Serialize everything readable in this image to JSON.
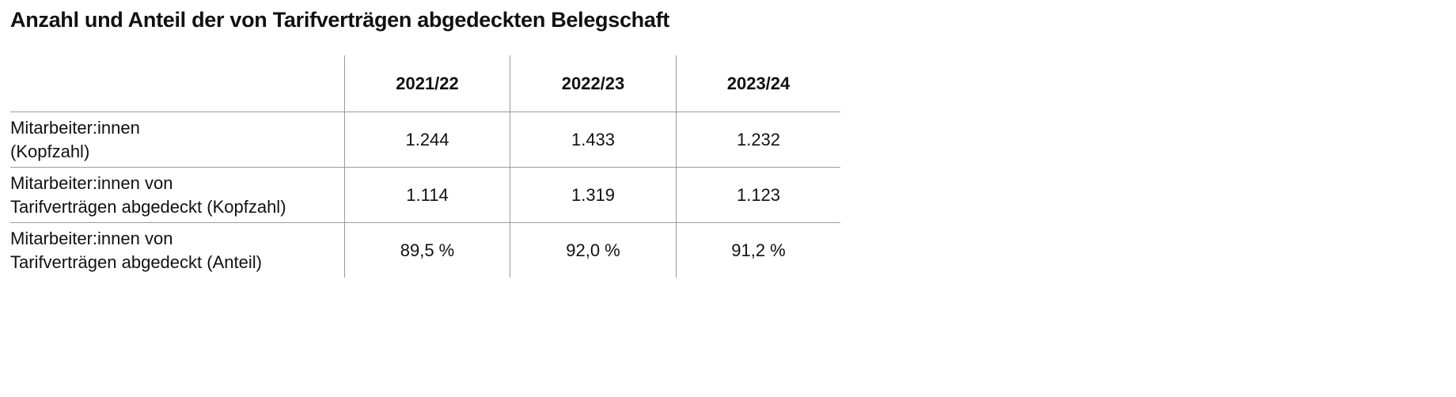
{
  "header": {
    "title": "Anzahl und Anteil der von Tarifverträgen abgedeckten Belegschaft"
  },
  "table": {
    "columns": [
      "2021/22",
      "2022/23",
      "2023/24"
    ],
    "rows": [
      {
        "label": [
          "Mitarbeiter:innen",
          "(Kopfzahl)"
        ],
        "cells": [
          "1.244",
          "1.433",
          "1.232"
        ]
      },
      {
        "label": [
          "Mitarbeiter:innen von",
          "Tarifverträgen abgedeckt (Kopfzahl)"
        ],
        "cells": [
          "1.114",
          "1.319",
          "1.123"
        ]
      },
      {
        "label": [
          "Mitarbeiter:innen von",
          "Tarifverträgen abgedeckt (Anteil)"
        ],
        "cells": [
          "89,5 %",
          "92,0 %",
          "91,2 %"
        ]
      }
    ]
  }
}
